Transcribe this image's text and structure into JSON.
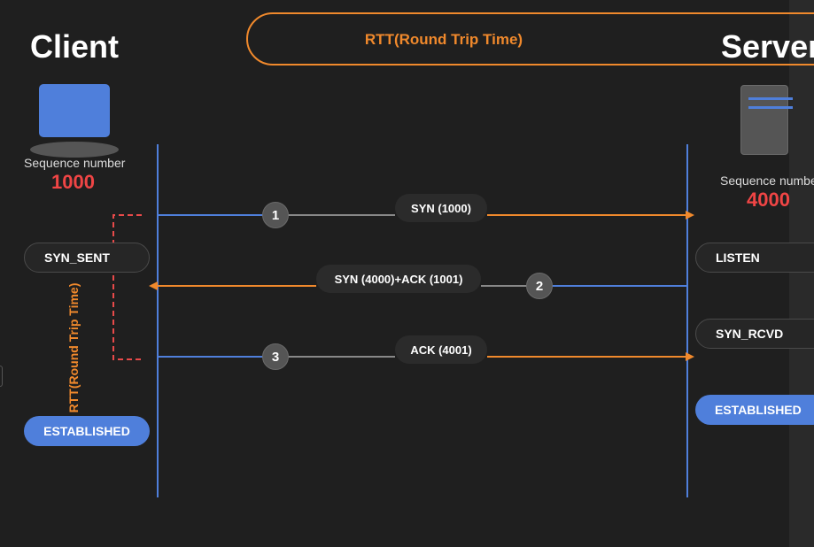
{
  "client": {
    "title": "Client",
    "sequence_label": "Sequence number",
    "sequence_value": "1000",
    "states": {
      "syn_sent": "SYN_SENT",
      "established": "ESTABLISHED"
    }
  },
  "server": {
    "title": "Server",
    "sequence_label": "Sequence number",
    "sequence_value": "4000",
    "states": {
      "listen": "LISTEN",
      "syn_rcvd": "SYN_RCVD",
      "established": "ESTABLISHED"
    }
  },
  "rtt": {
    "banner_label": "RTT(Round Trip Time)",
    "vertical_label": "RTT(Round Trip Time)"
  },
  "messages": [
    {
      "step": "1",
      "label": "SYN (1000)",
      "direction": "client-to-server"
    },
    {
      "step": "2",
      "label": "SYN (4000)+ACK (1001)",
      "direction": "server-to-client"
    },
    {
      "step": "3",
      "label": "ACK (4001)",
      "direction": "client-to-server"
    }
  ],
  "colors": {
    "background": "#1f1f1f",
    "accent_orange": "#f0892c",
    "timeline_blue": "#4f7fdb",
    "sequence_red": "#f04545",
    "rtt_bracket_red": "#e84a4a"
  }
}
